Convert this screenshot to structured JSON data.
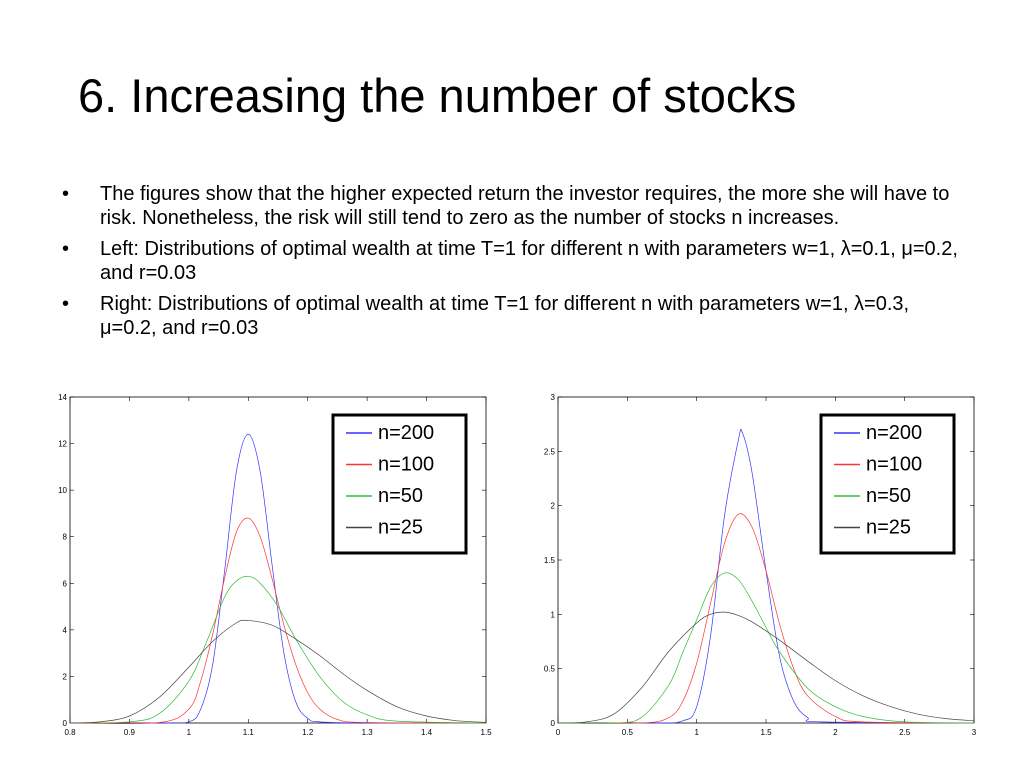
{
  "slide": {
    "title": "6. Increasing the number of stocks",
    "bullet_char": "•",
    "bullets": [
      "The figures show that the higher expected return the investor requires, the more she will have to risk. Nonetheless, the risk will still tend to zero as the number of stocks n increases.",
      "Left: Distributions of optimal wealth at time T=1 for different n with parameters w=1, λ=0.1, μ=0.2, and r=0.03",
      "Right: Distributions of optimal wealth at time T=1 for different n with parameters w=1, λ=0.3, μ=0.2, and r=0.03"
    ]
  },
  "colors": {
    "n200": "#3333ff",
    "n100": "#ff3333",
    "n50": "#33bb33",
    "n25": "#444444"
  },
  "chart_data": [
    {
      "type": "line",
      "xlim": [
        0.8,
        1.5
      ],
      "ylim": [
        0,
        14
      ],
      "xticks": [
        0.8,
        0.9,
        1,
        1.1,
        1.2,
        1.3,
        1.4,
        1.5
      ],
      "yticks": [
        0,
        2,
        4,
        6,
        8,
        10,
        12,
        14
      ],
      "xtick_labels": [
        "0.8",
        "0.9",
        "1",
        "1.1",
        "1.2",
        "1.3",
        "1.4",
        "1.5"
      ],
      "ytick_labels": [
        "0",
        "2",
        "4",
        "6",
        "8",
        "10",
        "12",
        "14"
      ],
      "legend_position": "top-right",
      "series": [
        {
          "name": "n=200",
          "color": "#3333ff",
          "x": [
            0.8,
            0.95,
            1.0,
            1.02,
            1.04,
            1.06,
            1.08,
            1.1,
            1.12,
            1.14,
            1.16,
            1.18,
            1.2,
            1.22,
            1.3,
            1.5
          ],
          "y": [
            0,
            0,
            0.05,
            0.6,
            2.5,
            6.5,
            10.8,
            12.4,
            10.8,
            6.8,
            3.0,
            0.9,
            0.2,
            0.05,
            0,
            0
          ]
        },
        {
          "name": "n=100",
          "color": "#ff3333",
          "x": [
            0.8,
            0.95,
            1.0,
            1.02,
            1.04,
            1.06,
            1.08,
            1.1,
            1.12,
            1.14,
            1.16,
            1.18,
            1.2,
            1.22,
            1.25,
            1.3,
            1.5
          ],
          "y": [
            0,
            0.02,
            0.6,
            1.8,
            3.8,
            6.2,
            8.2,
            8.8,
            8.0,
            6.2,
            4.2,
            2.5,
            1.3,
            0.6,
            0.15,
            0.02,
            0
          ]
        },
        {
          "name": "n=50",
          "color": "#33bb33",
          "x": [
            0.8,
            0.9,
            0.95,
            1.0,
            1.03,
            1.06,
            1.08,
            1.1,
            1.12,
            1.15,
            1.18,
            1.22,
            1.26,
            1.3,
            1.35,
            1.5
          ],
          "y": [
            0,
            0.05,
            0.4,
            1.8,
            3.5,
            5.4,
            6.1,
            6.3,
            6.0,
            5.0,
            3.6,
            2.0,
            0.9,
            0.35,
            0.08,
            0
          ]
        },
        {
          "name": "n=25",
          "color": "#444444",
          "x": [
            0.8,
            0.85,
            0.9,
            0.95,
            1.0,
            1.04,
            1.08,
            1.1,
            1.14,
            1.18,
            1.22,
            1.26,
            1.3,
            1.35,
            1.4,
            1.45,
            1.5
          ],
          "y": [
            0,
            0.05,
            0.3,
            1.1,
            2.4,
            3.5,
            4.3,
            4.4,
            4.2,
            3.6,
            2.9,
            2.1,
            1.4,
            0.7,
            0.3,
            0.1,
            0.03
          ]
        }
      ]
    },
    {
      "type": "line",
      "xlim": [
        0,
        3
      ],
      "ylim": [
        0,
        3
      ],
      "xticks": [
        0,
        0.5,
        1,
        1.5,
        2,
        2.5,
        3
      ],
      "yticks": [
        0,
        0.5,
        1,
        1.5,
        2,
        2.5,
        3
      ],
      "xtick_labels": [
        "0",
        "0.5",
        "1",
        "1.5",
        "2",
        "2.5",
        "3"
      ],
      "ytick_labels": [
        "0",
        "0.5",
        "1",
        "1.5",
        "2",
        "2.5",
        "3"
      ],
      "legend_position": "top-right",
      "series": [
        {
          "name": "n=200",
          "color": "#3333ff",
          "x": [
            0,
            0.7,
            0.9,
            1.0,
            1.1,
            1.2,
            1.3,
            1.33,
            1.4,
            1.5,
            1.6,
            1.7,
            1.8,
            1.9,
            3
          ],
          "y": [
            0,
            0,
            0.02,
            0.15,
            0.8,
            1.9,
            2.6,
            2.67,
            2.3,
            1.4,
            0.6,
            0.2,
            0.05,
            0.01,
            0
          ]
        },
        {
          "name": "n=100",
          "color": "#ff3333",
          "x": [
            0,
            0.6,
            0.8,
            0.9,
            1.0,
            1.1,
            1.2,
            1.3,
            1.4,
            1.5,
            1.6,
            1.7,
            1.8,
            2.0,
            2.2,
            3
          ],
          "y": [
            0,
            0,
            0.05,
            0.2,
            0.55,
            1.1,
            1.65,
            1.92,
            1.8,
            1.4,
            0.9,
            0.5,
            0.25,
            0.06,
            0.01,
            0
          ]
        },
        {
          "name": "n=50",
          "color": "#33bb33",
          "x": [
            0,
            0.4,
            0.6,
            0.8,
            0.9,
            1.0,
            1.1,
            1.2,
            1.3,
            1.4,
            1.5,
            1.6,
            1.8,
            2.0,
            2.2,
            2.5,
            3
          ],
          "y": [
            0,
            0,
            0.05,
            0.35,
            0.65,
            0.95,
            1.25,
            1.38,
            1.32,
            1.12,
            0.88,
            0.65,
            0.32,
            0.15,
            0.06,
            0.01,
            0
          ]
        },
        {
          "name": "n=25",
          "color": "#444444",
          "x": [
            0,
            0.2,
            0.4,
            0.6,
            0.8,
            1.0,
            1.1,
            1.2,
            1.3,
            1.4,
            1.6,
            1.8,
            2.0,
            2.2,
            2.4,
            2.6,
            2.8,
            3
          ],
          "y": [
            0,
            0.01,
            0.08,
            0.32,
            0.66,
            0.92,
            1.0,
            1.02,
            0.99,
            0.93,
            0.76,
            0.57,
            0.39,
            0.25,
            0.15,
            0.08,
            0.04,
            0.02
          ]
        }
      ]
    }
  ]
}
